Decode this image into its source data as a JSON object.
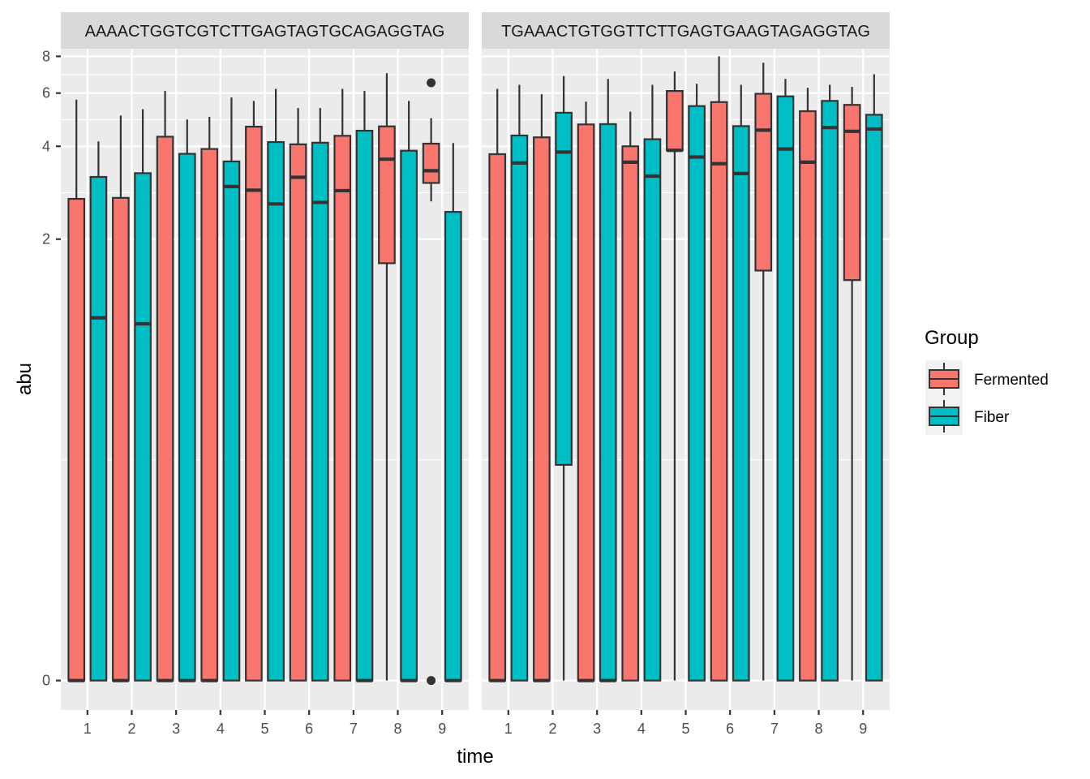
{
  "chart_data": {
    "type": "boxplot",
    "xlabel": "time",
    "ylabel": "abu",
    "y_scale": "sqrt(log(1+x))",
    "y_ticks": [
      0,
      2,
      4,
      6,
      8
    ],
    "ylim": [
      -0.05,
      8.5
    ],
    "grid": true,
    "legend": {
      "title": "Group",
      "position": "right",
      "entries": [
        "Fermented",
        "Fiber"
      ]
    },
    "colors": {
      "Fermented": "#F8766D",
      "Fiber": "#00BFC4"
    },
    "categories": [
      "1",
      "2",
      "3",
      "4",
      "5",
      "6",
      "7",
      "8",
      "9"
    ],
    "panels": [
      {
        "strip_label": "AAAACTGGTCGTCTTGAGTAGTGCAGAGGTAG",
        "series": [
          {
            "name": "Fermented",
            "boxes": [
              {
                "ymin": 0,
                "q1": 0,
                "median": 0,
                "q3": 2.7,
                "ymax": 5.7
              },
              {
                "ymin": 0,
                "q1": 0,
                "median": 0,
                "q3": 2.72,
                "ymax": 5.05
              },
              {
                "ymin": 0,
                "q1": 0,
                "median": 0,
                "q3": 4.3,
                "ymax": 6.1
              },
              {
                "ymin": 0,
                "q1": 0,
                "median": 0,
                "q3": 3.92,
                "ymax": 5.0
              },
              {
                "ymin": 0,
                "q1": 0,
                "median": 2.88,
                "q3": 4.64,
                "ymax": 5.65
              },
              {
                "ymin": 0,
                "q1": 0,
                "median": 3.17,
                "q3": 4.06,
                "ymax": 5.35
              },
              {
                "ymin": 0,
                "q1": 0,
                "median": 2.87,
                "q3": 4.33,
                "ymax": 6.2
              },
              {
                "ymin": 0,
                "q1": 1.67,
                "median": 3.63,
                "q3": 4.65,
                "ymax": 7.0
              },
              {
                "ymin": 2.65,
                "q1": 3.04,
                "median": 3.33,
                "q3": 4.08,
                "ymax": 4.95,
                "outliers": [
                  6.5,
                  0
                ]
              }
            ]
          },
          {
            "name": "Fiber",
            "boxes": [
              {
                "ymin": 0,
                "q1": 0,
                "median": 1.1,
                "q3": 3.18,
                "ymax": 4.15
              },
              {
                "ymin": 0,
                "q1": 0,
                "median": 1.05,
                "q3": 3.27,
                "ymax": 5.3
              },
              {
                "ymin": 0,
                "q1": 0,
                "median": 0,
                "q3": 3.78,
                "ymax": 4.9
              },
              {
                "ymin": 0,
                "q1": 0,
                "median": 2.96,
                "q3": 3.57,
                "ymax": 5.8
              },
              {
                "ymin": 0,
                "q1": 0,
                "median": 2.6,
                "q3": 4.13,
                "ymax": 6.2
              },
              {
                "ymin": 0,
                "q1": 0,
                "median": 2.63,
                "q3": 4.11,
                "ymax": 5.35
              },
              {
                "ymin": 0,
                "q1": 0,
                "median": 0,
                "q3": 4.5,
                "ymax": 6.1
              },
              {
                "ymin": 0,
                "q1": 0,
                "median": 0,
                "q3": 3.87,
                "ymax": 5.65
              },
              {
                "ymin": 0,
                "q1": 0,
                "median": 0,
                "q3": 2.45,
                "ymax": 4.1
              }
            ]
          }
        ]
      },
      {
        "strip_label": "TGAAACTGTGGTTCTTGAGTGAAGTAGAGGTAG",
        "series": [
          {
            "name": "Fermented",
            "boxes": [
              {
                "ymin": 0,
                "q1": 0,
                "median": 0,
                "q3": 3.77,
                "ymax": 6.2
              },
              {
                "ymin": 0,
                "q1": 0,
                "median": 0,
                "q3": 4.28,
                "ymax": 5.95
              },
              {
                "ymin": 0,
                "q1": 0,
                "median": 0,
                "q3": 4.72,
                "ymax": 5.62
              },
              {
                "ymin": 0,
                "q1": 0,
                "median": 3.55,
                "q3": 4.0,
                "ymax": 5.2
              },
              {
                "ymin": 0,
                "q1": 3.88,
                "median": 3.88,
                "q3": 6.1,
                "ymax": 7.1
              },
              {
                "ymin": 0,
                "q1": 0,
                "median": 3.51,
                "q3": 5.6,
                "ymax": 8.0
              },
              {
                "ymin": 0,
                "q1": 1.58,
                "median": 4.52,
                "q3": 5.97,
                "ymax": 7.6
              },
              {
                "ymin": 0,
                "q1": 0,
                "median": 3.55,
                "q3": 5.22,
                "ymax": 6.25
              },
              {
                "ymin": 0,
                "q1": 1.47,
                "median": 4.48,
                "q3": 5.48,
                "ymax": 6.3
              }
            ]
          },
          {
            "name": "Fiber",
            "boxes": [
              {
                "ymin": 0,
                "q1": 0,
                "median": 3.53,
                "q3": 4.34,
                "ymax": 6.4
              },
              {
                "ymin": 0,
                "q1": 0.3,
                "median": 3.83,
                "q3": 5.16,
                "ymax": 6.85
              },
              {
                "ymin": 0,
                "q1": 0,
                "median": 0,
                "q3": 4.73,
                "ymax": 6.7
              },
              {
                "ymin": 0,
                "q1": 0,
                "median": 3.2,
                "q3": 4.22,
                "ymax": 6.4
              },
              {
                "ymin": 0,
                "q1": 0,
                "median": 3.69,
                "q3": 5.43,
                "ymax": 6.45
              },
              {
                "ymin": 0,
                "q1": 0,
                "median": 3.26,
                "q3": 4.66,
                "ymax": 6.4
              },
              {
                "ymin": 0,
                "q1": 0,
                "median": 3.92,
                "q3": 5.85,
                "ymax": 6.7
              },
              {
                "ymin": 0,
                "q1": 0,
                "median": 4.61,
                "q3": 5.65,
                "ymax": 6.4
              },
              {
                "ymin": 0,
                "q1": 0,
                "median": 4.56,
                "q3": 5.08,
                "ymax": 6.95
              }
            ]
          }
        ]
      }
    ]
  }
}
